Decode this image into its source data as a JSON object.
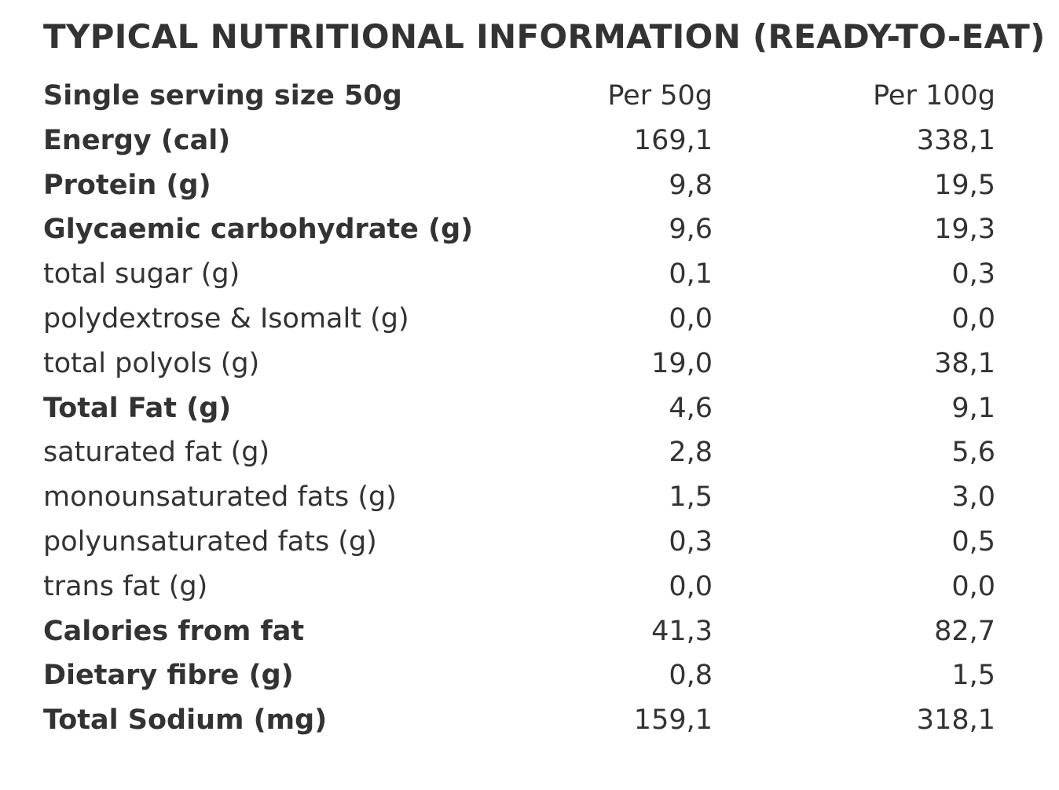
{
  "title": "TYPICAL NUTRITIONAL INFORMATION (READY-TO-EAT)",
  "table": {
    "header": {
      "label": "Single serving size 50g",
      "col_per_serving": "Per 50g",
      "col_per_100": "Per 100g"
    },
    "rows": [
      {
        "label": "Energy (cal)",
        "per_50g": "169,1",
        "per_100g": "338,1",
        "bold": true
      },
      {
        "label": "Protein (g)",
        "per_50g": "9,8",
        "per_100g": "19,5",
        "bold": true
      },
      {
        "label": "Glycaemic carbohydrate (g)",
        "per_50g": "9,6",
        "per_100g": "19,3",
        "bold": true
      },
      {
        "label": "total sugar (g)",
        "per_50g": "0,1",
        "per_100g": "0,3",
        "bold": false
      },
      {
        "label": "polydextrose & Isomalt (g)",
        "per_50g": "0,0",
        "per_100g": "0,0",
        "bold": false
      },
      {
        "label": "total polyols (g)",
        "per_50g": "19,0",
        "per_100g": "38,1",
        "bold": false
      },
      {
        "label": "Total Fat (g)",
        "per_50g": "4,6",
        "per_100g": "9,1",
        "bold": true
      },
      {
        "label": "saturated fat (g)",
        "per_50g": "2,8",
        "per_100g": "5,6",
        "bold": false
      },
      {
        "label": "monounsaturated fats (g)",
        "per_50g": "1,5",
        "per_100g": "3,0",
        "bold": false
      },
      {
        "label": "polyunsaturated fats (g)",
        "per_50g": "0,3",
        "per_100g": "0,5",
        "bold": false
      },
      {
        "label": "trans fat (g)",
        "per_50g": "0,0",
        "per_100g": "0,0",
        "bold": false
      },
      {
        "label": "Calories from fat",
        "per_50g": "41,3",
        "per_100g": "82,7",
        "bold": true
      },
      {
        "label": "Dietary fibre (g)",
        "per_50g": "0,8",
        "per_100g": "1,5",
        "bold": true
      },
      {
        "label": "Total Sodium (mg)",
        "per_50g": "159,1",
        "per_100g": "318,1",
        "bold": true
      }
    ]
  }
}
